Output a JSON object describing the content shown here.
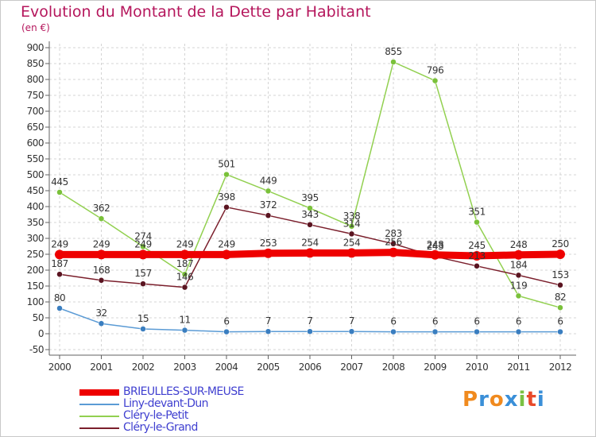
{
  "title": "Evolution du Montant de la Dette par Habitant",
  "subtitle": "(en €)",
  "logo": {
    "letters": [
      "P",
      "r",
      "o",
      "x",
      "i",
      "t",
      "i"
    ],
    "colors": [
      "#f08a1e",
      "#3a8fd8",
      "#f08a1e",
      "#3a8fd8",
      "#7ac143",
      "#e84a2a",
      "#3a8fd8"
    ]
  },
  "chart_data": {
    "type": "line",
    "x": [
      "2000",
      "2001",
      "2002",
      "2003",
      "2004",
      "2005",
      "2006",
      "2007",
      "2008",
      "2009",
      "2010",
      "2011",
      "2012"
    ],
    "ylim": [
      -50,
      900
    ],
    "yticks": [
      -50,
      0,
      50,
      100,
      150,
      200,
      250,
      300,
      350,
      400,
      450,
      500,
      550,
      600,
      650,
      700,
      750,
      800,
      850,
      900
    ],
    "grid": true,
    "legend_position": "bottom-left",
    "series": [
      {
        "name": "Liny-devant-Dun",
        "color": "#5b9bd5",
        "values": [
          80,
          32,
          15,
          11,
          6,
          7,
          7,
          7,
          6,
          6,
          6,
          6,
          6
        ]
      },
      {
        "name": "Cléry-le-Petit",
        "color": "#92d050",
        "values": [
          445,
          362,
          274,
          187,
          501,
          449,
          395,
          338,
          855,
          796,
          351,
          119,
          82
        ]
      },
      {
        "name": "Cléry-le-Grand",
        "color": "#7b1f2c",
        "values": [
          187,
          168,
          157,
          146,
          398,
          372,
          343,
          314,
          283,
          243,
          213,
          184,
          153
        ]
      },
      {
        "name": "BRIEULLES-SUR-MEUSE",
        "color": "#ee0000",
        "values": [
          249,
          249,
          249,
          249,
          249,
          253,
          254,
          254,
          256,
          248,
          245,
          248,
          250
        ]
      }
    ]
  },
  "legend_order": [
    3,
    0,
    1,
    2
  ]
}
